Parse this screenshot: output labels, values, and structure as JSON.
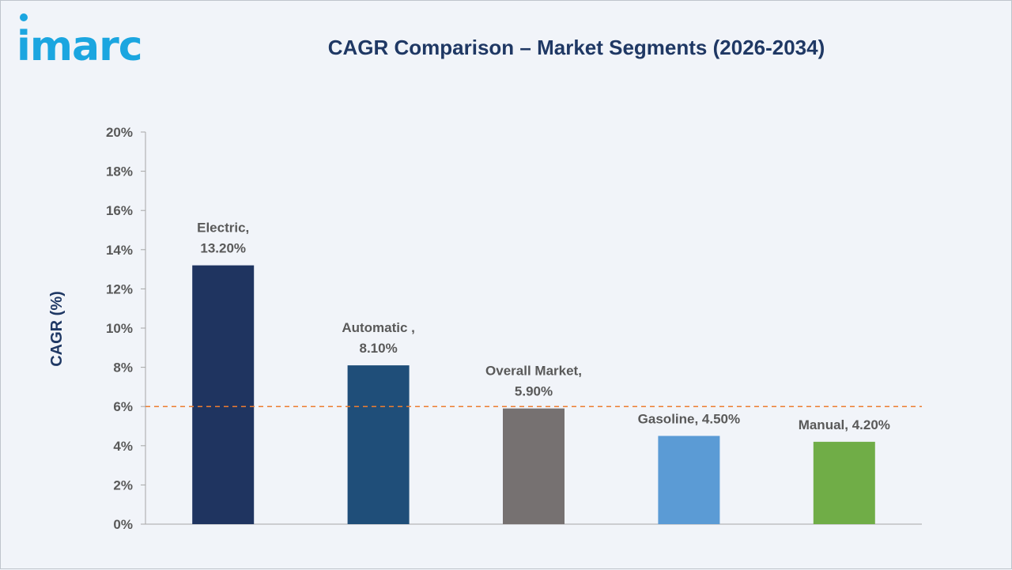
{
  "logo": {
    "text": "imarc"
  },
  "chart_data": {
    "type": "bar",
    "title": "CAGR Comparison – Market Segments (2026-2034)",
    "ylabel": "CAGR (%)",
    "xlabel": "",
    "ylim": [
      0,
      20
    ],
    "yticks": [
      0,
      2,
      4,
      6,
      8,
      10,
      12,
      14,
      16,
      18,
      20
    ],
    "ytick_labels": [
      "0%",
      "2%",
      "4%",
      "6%",
      "8%",
      "10%",
      "12%",
      "14%",
      "16%",
      "18%",
      "20%"
    ],
    "grid": false,
    "reference_line": {
      "value": 6,
      "style": "dashed",
      "color": "#ed7d31"
    },
    "bars": [
      {
        "category": "Electric",
        "value": 13.2,
        "label_lines": [
          "Electric,",
          "13.20%"
        ],
        "color": "#1f3460"
      },
      {
        "category": "Automatic",
        "value": 8.1,
        "label_lines": [
          "Automatic ,",
          "8.10%"
        ],
        "color": "#1f4e79"
      },
      {
        "category": "Overall Market",
        "value": 5.9,
        "label_lines": [
          "Overall Market,",
          "5.90%"
        ],
        "color": "#767171"
      },
      {
        "category": "Gasoline",
        "value": 4.5,
        "label_lines": [
          "Gasoline, 4.50%"
        ],
        "color": "#5b9bd5"
      },
      {
        "category": "Manual",
        "value": 4.2,
        "label_lines": [
          "Manual, 4.20%"
        ],
        "color": "#70ad47"
      }
    ]
  }
}
